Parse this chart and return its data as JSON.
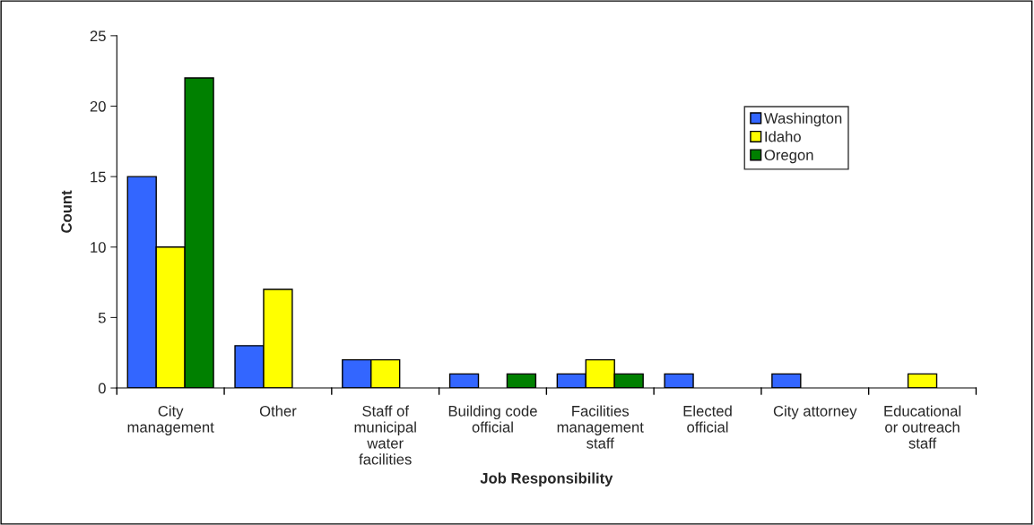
{
  "chart_data": {
    "type": "bar",
    "xlabel": "Job Responsibility",
    "ylabel": "Count",
    "categories": [
      "City\nmanagement",
      "Other",
      "Staff of\nmunicipal\nwater\nfacilities",
      "Building code\nofficial",
      "Facilities\nmanagement\nstaff",
      "Elected\nofficial",
      "City attorney",
      "Educational\nor outreach\nstaff"
    ],
    "series": [
      {
        "name": "Washington",
        "color": "#3366ff",
        "values": [
          15,
          3,
          2,
          1,
          1,
          1,
          1,
          null
        ]
      },
      {
        "name": "Idaho",
        "color": "#ffff00",
        "values": [
          10,
          7,
          2,
          null,
          2,
          null,
          null,
          1
        ]
      },
      {
        "name": "Oregon",
        "color": "#008000",
        "values": [
          22,
          null,
          null,
          1,
          1,
          null,
          null,
          null
        ]
      }
    ],
    "ylim": [
      0,
      25
    ],
    "yticks": [
      0,
      5,
      10,
      15,
      20,
      25
    ],
    "grid": false,
    "legend": "top right"
  }
}
